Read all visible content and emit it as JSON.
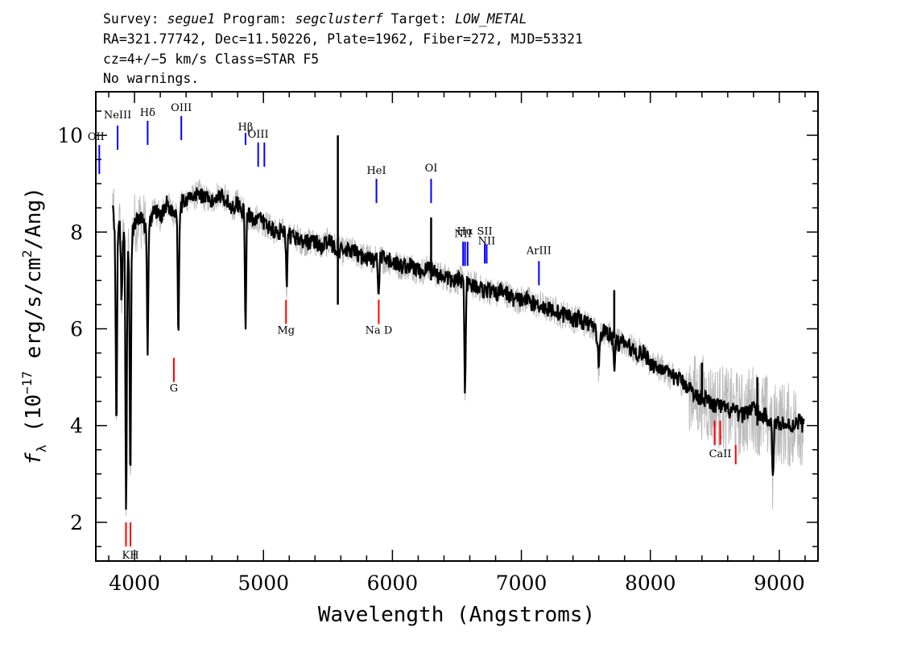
{
  "header": {
    "line1": [
      {
        "text": "Survey: ",
        "italic": false
      },
      {
        "text": "segue1",
        "italic": true
      },
      {
        "text": " Program: ",
        "italic": false
      },
      {
        "text": "segclusterf",
        "italic": true
      },
      {
        "text": " Target: ",
        "italic": false
      },
      {
        "text": "LOW_METAL",
        "italic": true
      }
    ],
    "line2": "RA=321.77742, Dec=11.50226, Plate=1962, Fiber=272, MJD=53321",
    "line3": "cz=4+/−5 km/s Class=STAR F5",
    "line4": "No warnings."
  },
  "chart_data": {
    "type": "line",
    "xlabel": "Wavelength (Angstroms)",
    "ylabel_parts": {
      "symbol": "f",
      "subscript": "λ",
      "prefix": " (10",
      "exponent": "−17",
      "suffix": " erg/s/cm",
      "exponent2": "2",
      "tail": "/Ang)"
    },
    "xlim": [
      3700,
      9300
    ],
    "ylim": [
      1.2,
      10.9
    ],
    "xticks": [
      4000,
      5000,
      6000,
      7000,
      8000,
      9000
    ],
    "yticks": [
      2,
      4,
      6,
      8,
      10
    ],
    "series": [
      {
        "role": "smoothed-flux",
        "color": "#000000",
        "x": [
          3830,
          3850,
          3870,
          3900,
          3950,
          4000,
          4050,
          4100,
          4150,
          4200,
          4250,
          4300,
          4350,
          4400,
          4450,
          4500,
          4550,
          4600,
          4650,
          4700,
          4750,
          4800,
          4850,
          4900,
          4950,
          5000,
          5050,
          5100,
          5150,
          5200,
          5250,
          5300,
          5350,
          5400,
          5450,
          5500,
          5550,
          5600,
          5650,
          5700,
          5750,
          5800,
          5850,
          5900,
          5950,
          6000,
          6050,
          6100,
          6150,
          6200,
          6250,
          6300,
          6350,
          6400,
          6450,
          6500,
          6550,
          6600,
          6650,
          6700,
          6750,
          6800,
          6850,
          6900,
          6950,
          7000,
          7050,
          7100,
          7150,
          7200,
          7250,
          7300,
          7350,
          7400,
          7450,
          7500,
          7550,
          7600,
          7650,
          7700,
          7750,
          7800,
          7850,
          7900,
          7950,
          8000,
          8050,
          8100,
          8150,
          8200,
          8250,
          8300,
          8350,
          8400,
          8450,
          8500,
          8550,
          8600,
          8650,
          8700,
          8750,
          8800,
          8850,
          8900,
          8950,
          9000,
          9050,
          9100,
          9150,
          9190
        ],
        "y": [
          8.6,
          7.8,
          8.2,
          8.0,
          7.6,
          8.2,
          8.3,
          8.0,
          8.5,
          8.3,
          8.6,
          8.4,
          8.5,
          8.7,
          8.7,
          8.8,
          8.7,
          8.6,
          8.8,
          8.7,
          8.5,
          8.6,
          8.4,
          8.3,
          8.3,
          8.2,
          8.1,
          8.0,
          8.0,
          7.9,
          7.9,
          7.8,
          7.8,
          7.8,
          7.7,
          7.8,
          7.7,
          7.6,
          7.6,
          7.6,
          7.5,
          7.5,
          7.4,
          7.5,
          7.4,
          7.4,
          7.3,
          7.3,
          7.3,
          7.2,
          7.2,
          7.3,
          7.1,
          7.1,
          7.0,
          7.0,
          7.0,
          6.9,
          6.9,
          6.8,
          6.8,
          6.7,
          6.8,
          6.7,
          6.6,
          6.6,
          6.6,
          6.5,
          6.5,
          6.4,
          6.4,
          6.3,
          6.3,
          6.2,
          6.2,
          6.1,
          6.1,
          5.8,
          6.0,
          5.8,
          5.7,
          5.7,
          5.6,
          5.5,
          5.5,
          5.3,
          5.2,
          5.2,
          5.0,
          5.0,
          4.9,
          4.8,
          4.6,
          4.6,
          4.5,
          4.4,
          4.4,
          4.3,
          4.3,
          4.2,
          4.3,
          4.4,
          4.2,
          4.2,
          4.0,
          4.1,
          4.0,
          4.0,
          4.1,
          4.0
        ]
      }
    ],
    "absorption_features": [
      {
        "x": 3860,
        "depth": 4.2
      },
      {
        "x": 3900,
        "depth": 1.5
      },
      {
        "x": 3935,
        "depth": 5.6
      },
      {
        "x": 3968,
        "depth": 5.1
      },
      {
        "x": 4102,
        "depth": 2.6
      },
      {
        "x": 4340,
        "depth": 2.6
      },
      {
        "x": 4861,
        "depth": 2.3
      },
      {
        "x": 5180,
        "depth": 1.1
      },
      {
        "x": 5893,
        "depth": 0.9
      },
      {
        "x": 6563,
        "depth": 2.2
      },
      {
        "x": 7600,
        "depth": 0.7
      },
      {
        "x": 7720,
        "depth": 0.6
      },
      {
        "x": 8950,
        "depth": 1.2
      }
    ],
    "spikes": [
      {
        "x": 5577,
        "ymin": 6.5,
        "ymax": 10.0
      },
      {
        "x": 6300,
        "ymin": 7.0,
        "ymax": 8.3
      },
      {
        "x": 7720,
        "ymin": 5.8,
        "ymax": 6.8
      },
      {
        "x": 8400,
        "ymin": 4.6,
        "ymax": 5.3
      },
      {
        "x": 8830,
        "ymin": 4.0,
        "ymax": 5.0
      }
    ],
    "emission_lines": [
      {
        "label": "OII",
        "x": 3727,
        "y0": 9.2,
        "y1": 9.8,
        "label_y": 9.9
      },
      {
        "label": "NeIII",
        "x": 3869,
        "y0": 9.7,
        "y1": 10.2,
        "label_y": 10.35
      },
      {
        "label": "Hδ",
        "x": 4102,
        "y0": 9.8,
        "y1": 10.3,
        "label_y": 10.4
      },
      {
        "label": "OIII",
        "x": 4363,
        "y0": 9.9,
        "y1": 10.4,
        "label_y": 10.5
      },
      {
        "label": "Hβ",
        "x": 4861,
        "y0": 9.8,
        "y1": 10.05,
        "label_y": 10.1
      },
      {
        "label": "OIII",
        "x": 4959,
        "y0": 9.35,
        "y1": 9.85,
        "label_y": 9.95
      },
      {
        "label": "",
        "x": 5007,
        "y0": 9.35,
        "y1": 9.85,
        "label_y": 9.95
      },
      {
        "label": "HeI",
        "x": 5876,
        "y0": 8.6,
        "y1": 9.1,
        "label_y": 9.2
      },
      {
        "label": "OI",
        "x": 6300,
        "y0": 8.6,
        "y1": 9.1,
        "label_y": 9.25
      },
      {
        "label": "NII",
        "x": 6548,
        "y0": 7.3,
        "y1": 7.8,
        "label_y": 7.9
      },
      {
        "label": "Hα",
        "x": 6563,
        "y0": 7.3,
        "y1": 7.8,
        "label_y": 7.95
      },
      {
        "label": "",
        "x": 6583,
        "y0": 7.3,
        "y1": 7.8,
        "label_y": 7.9
      },
      {
        "label": "SII",
        "x": 6716,
        "y0": 7.35,
        "y1": 7.75,
        "label_y": 7.95
      },
      {
        "label": "NII",
        "x": 6731,
        "y0": 7.35,
        "y1": 7.75,
        "label_y": 7.75
      },
      {
        "label": "ArIII",
        "x": 7136,
        "y0": 6.9,
        "y1": 7.4,
        "label_y": 7.55
      }
    ],
    "absorption_lines": [
      {
        "label": "",
        "x": 3934,
        "y0": 1.5,
        "y1": 2.0
      },
      {
        "label": "KH",
        "x": 3969,
        "y0": 1.5,
        "y1": 2.0,
        "label_y": 1.25
      },
      {
        "label": "G",
        "x": 4305,
        "y0": 4.9,
        "y1": 5.4,
        "label_y": 4.7
      },
      {
        "label": "Mg",
        "x": 5175,
        "y0": 6.1,
        "y1": 6.6,
        "label_y": 5.9
      },
      {
        "label": "Na D",
        "x": 5894,
        "y0": 6.1,
        "y1": 6.6,
        "label_y": 5.9
      },
      {
        "label": "",
        "x": 8498,
        "y0": 3.6,
        "y1": 4.1
      },
      {
        "label": "CaII",
        "x": 8542,
        "y0": 3.6,
        "y1": 4.1,
        "label_y": 3.35
      },
      {
        "label": "",
        "x": 8662,
        "y0": 3.2,
        "y1": 3.6
      }
    ]
  },
  "colors": {
    "raw_flux": "#bbbbbb",
    "smoothed_flux": "#000000",
    "emission_line": "#0000ff",
    "absorption_line": "#ff0000",
    "axes": "#000000",
    "background": "#ffffff"
  }
}
